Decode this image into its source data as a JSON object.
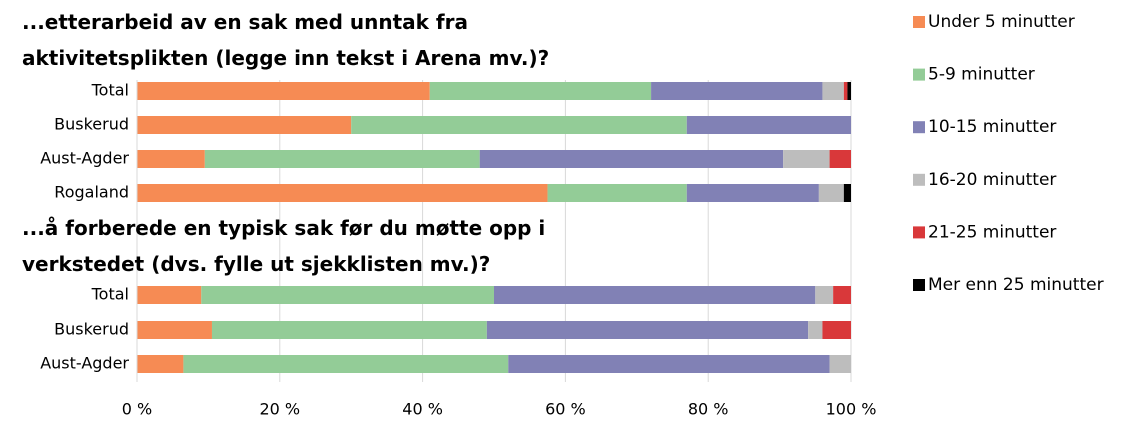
{
  "chart_data": [
    {
      "type": "bar",
      "orientation": "horizontal",
      "stacked": true,
      "title": "...etterarbeid av en sak med unntak fra aktivitetsplikten (legge inn tekst i Arena mv.)?",
      "categories": [
        "Total",
        "Buskerud",
        "Aust-Agder",
        "Rogaland"
      ],
      "series": [
        {
          "name": "Under 5 minutter",
          "color": "#f68b54",
          "values": [
            41,
            30,
            9.5,
            57.5
          ]
        },
        {
          "name": "5-9 minutter",
          "color": "#93cc97",
          "values": [
            31,
            47,
            38.5,
            19.5
          ]
        },
        {
          "name": "10-15 minutter",
          "color": "#8181b5",
          "values": [
            24,
            23,
            42.5,
            18.5
          ]
        },
        {
          "name": "16-20 minutter",
          "color": "#bdbdbd",
          "values": [
            3,
            0,
            6.5,
            3.5
          ]
        },
        {
          "name": "21-25 minutter",
          "color": "#d9383a",
          "values": [
            0.5,
            0,
            3,
            0
          ]
        },
        {
          "name": "Mer enn 25 minutter",
          "color": "#000000",
          "values": [
            0.5,
            0,
            0,
            1
          ]
        }
      ],
      "xlim": [
        0,
        100
      ],
      "xticks": [
        {
          "value": 0,
          "label": "0 %"
        },
        {
          "value": 20,
          "label": "20 %"
        },
        {
          "value": 40,
          "label": "40 %"
        },
        {
          "value": 60,
          "label": "60 %"
        },
        {
          "value": 80,
          "label": "80 %"
        },
        {
          "value": 100,
          "label": "100 %"
        }
      ],
      "grid": true,
      "legend": "right"
    },
    {
      "type": "bar",
      "orientation": "horizontal",
      "stacked": true,
      "title": "...å forberede en typisk sak før du møtte opp i verkstedet (dvs. fylle ut sjekklisten mv.)?",
      "categories": [
        "Total",
        "Buskerud",
        "Aust-Agder"
      ],
      "series": [
        {
          "values": [
            9,
            10.5,
            6.5
          ]
        },
        {
          "values": [
            41,
            38.5,
            45.5
          ]
        },
        {
          "values": [
            45,
            45,
            45
          ]
        },
        {
          "values": [
            2.5,
            2,
            3
          ]
        },
        {
          "values": [
            2.5,
            4,
            0
          ]
        },
        {
          "values": [
            0,
            0,
            0
          ]
        }
      ]
    }
  ]
}
